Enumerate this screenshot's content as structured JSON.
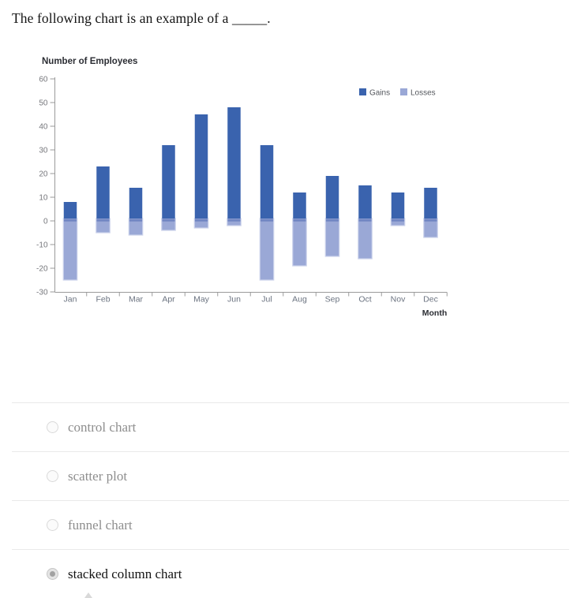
{
  "question": "The following chart is an example of a _____.",
  "chart_data": {
    "type": "bar",
    "stacked": true,
    "title": "Number of Employees",
    "xlabel": "Month",
    "categories": [
      "Jan",
      "Feb",
      "Mar",
      "Apr",
      "May",
      "Jun",
      "Jul",
      "Aug",
      "Sep",
      "Oct",
      "Nov",
      "Dec"
    ],
    "series": [
      {
        "name": "Gains",
        "color": "#3A63AE",
        "values": [
          8,
          23,
          14,
          32,
          45,
          48,
          32,
          12,
          19,
          15,
          12,
          14
        ]
      },
      {
        "name": "Losses",
        "color": "#9AA8D6",
        "values": [
          -25,
          -5,
          -6,
          -4,
          -3,
          -2,
          -25,
          -19,
          -15,
          -16,
          -2,
          -7
        ]
      }
    ],
    "ylim": [
      -30,
      60
    ],
    "ytick_step": 10,
    "grid": false,
    "legend_position": "top-right",
    "colors": {
      "axis": "#9a9a9a",
      "ytick_label": "#76777c",
      "xtick_label": "#6b7380",
      "title_text": "#2b2d33",
      "legend_text": "#54575d",
      "loss_border": "#ccd3eb",
      "overlap_band": "#7186c3"
    }
  },
  "options": [
    {
      "label": "control chart",
      "selected": false
    },
    {
      "label": "scatter plot",
      "selected": false
    },
    {
      "label": "funnel chart",
      "selected": false
    },
    {
      "label": "stacked column chart",
      "selected": true
    }
  ]
}
